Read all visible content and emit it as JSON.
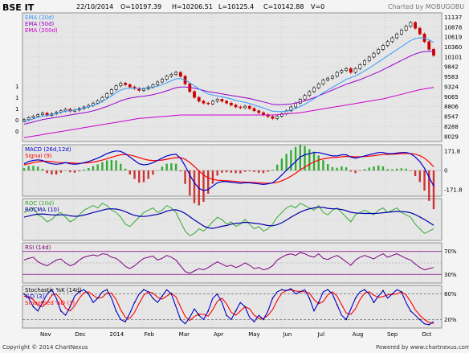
{
  "header": {
    "symbol": "BSE IT",
    "date": "22/10/2014",
    "open": "O=10197.39",
    "high": "H=10206.51",
    "low": "L=10125.4",
    "close": "C=10142.88",
    "volume": "V=0",
    "credit": "Charted by MOBUGOBU"
  },
  "footer": {
    "copyright": "Copyright © 2014 ChartNexus",
    "powered": "Powered by www.chartnexus.com"
  },
  "colors": {
    "background": "#e6e6e6",
    "grid": "#c0c0c0",
    "candle_up": "#000000",
    "candle_down": "#cc0000",
    "ema20": "#3399ff",
    "ema50": "#9900cc",
    "ema200": "#cc00cc",
    "macd": "#0000cc",
    "signal": "#ff0000",
    "hist_up": "#33aa33",
    "hist_down": "#cc3333",
    "roc": "#33aa33",
    "rocma": "#0000aa",
    "rsi": "#800080",
    "stoch_k": "#0000cc",
    "stoch_d": "#ff0000"
  },
  "chart_data": [
    {
      "type": "candlestick",
      "title": "BSE IT",
      "legend": [
        "EMA (20d)",
        "EMA (50d)",
        "EMA (200d)"
      ],
      "legend_placement": "top-left",
      "y_ticks": [
        "11137",
        "10878",
        "10619",
        "10360",
        "10101",
        "9842",
        "9583",
        "9324",
        "9065",
        "8806",
        "8547",
        "8288",
        "8029"
      ],
      "left_ticks": [
        "1",
        "1",
        "1",
        "0",
        "0"
      ],
      "ylim": [
        7900,
        11250
      ],
      "x_labels": [
        "Nov",
        "Dec",
        "2014",
        "Feb",
        "Mar",
        "Apr",
        "May",
        "Jun",
        "Jul",
        "Aug",
        "Sep",
        "Oct"
      ],
      "closes": [
        8470,
        8520,
        8560,
        8600,
        8640,
        8580,
        8620,
        8660,
        8700,
        8740,
        8690,
        8720,
        8760,
        8800,
        8840,
        8900,
        8960,
        9050,
        9150,
        9250,
        9350,
        9420,
        9380,
        9320,
        9280,
        9230,
        9270,
        9320,
        9380,
        9450,
        9520,
        9600,
        9650,
        9700,
        9600,
        9400,
        9200,
        9050,
        8950,
        8900,
        8880,
        8950,
        9000,
        8950,
        8900,
        8850,
        8800,
        8780,
        8820,
        8760,
        8700,
        8650,
        8600,
        8550,
        8500,
        8560,
        8620,
        8700,
        8800,
        8900,
        9000,
        9100,
        9200,
        9300,
        9400,
        9500,
        9550,
        9600,
        9700,
        9750,
        9800,
        9700,
        9800,
        9900,
        10000,
        10100,
        10200,
        10300,
        10400,
        10500,
        10600,
        10700,
        10800,
        10900,
        11000,
        10850,
        10700,
        10500,
        10300,
        10142.88
      ],
      "ema20": [
        8400,
        8450,
        8490,
        8530,
        8560,
        8580,
        8600,
        8630,
        8660,
        8690,
        8700,
        8720,
        8740,
        8770,
        8800,
        8840,
        8880,
        8940,
        9010,
        9090,
        9170,
        9240,
        9280,
        9290,
        9290,
        9280,
        9280,
        9290,
        9310,
        9340,
        9380,
        9430,
        9480,
        9530,
        9540,
        9500,
        9430,
        9350,
        9270,
        9200,
        9140,
        9110,
        9090,
        9070,
        9040,
        9010,
        8970,
        8940,
        8920,
        8890,
        8850,
        8810,
        8770,
        8730,
        8690,
        8680,
        8680,
        8690,
        8720,
        8760,
        8810,
        8870,
        8940,
        9010,
        9090,
        9170,
        9240,
        9310,
        9380,
        9450,
        9520,
        9560,
        9610,
        9670,
        9740,
        9810,
        9890,
        9970,
        10050,
        10130,
        10210,
        10290,
        10370,
        10450,
        10530,
        10580,
        10600,
        10590,
        10550,
        10480
      ],
      "ema50": [
        8350,
        8380,
        8410,
        8440,
        8470,
        8490,
        8510,
        8530,
        8550,
        8570,
        8590,
        8610,
        8630,
        8650,
        8670,
        8700,
        8730,
        8770,
        8810,
        8860,
        8910,
        8960,
        9000,
        9030,
        9050,
        9070,
        9080,
        9100,
        9120,
        9150,
        9180,
        9220,
        9260,
        9300,
        9320,
        9320,
        9310,
        9290,
        9260,
        9230,
        9200,
        9180,
        9160,
        9140,
        9120,
        9100,
        9080,
        9060,
        9040,
        9020,
        8990,
        8960,
        8930,
        8900,
        8870,
        8860,
        8860,
        8870,
        8880,
        8900,
        8930,
        8960,
        9000,
        9040,
        9090,
        9140,
        9190,
        9240,
        9290,
        9340,
        9390,
        9430,
        9470,
        9510,
        9560,
        9610,
        9660,
        9710,
        9770,
        9830,
        9890,
        9950,
        10010,
        10070,
        10130,
        10180,
        10220,
        10240,
        10250,
        10240
      ],
      "ema200": [
        8000,
        8020,
        8040,
        8060,
        8080,
        8100,
        8120,
        8140,
        8160,
        8180,
        8200,
        8220,
        8240,
        8260,
        8280,
        8300,
        8320,
        8340,
        8360,
        8380,
        8400,
        8420,
        8440,
        8460,
        8480,
        8500,
        8510,
        8520,
        8530,
        8540,
        8550,
        8560,
        8570,
        8580,
        8590,
        8590,
        8590,
        8590,
        8590,
        8590,
        8590,
        8590,
        8590,
        8590,
        8590,
        8590,
        8590,
        8590,
        8590,
        8590,
        8590,
        8590,
        8590,
        8590,
        8590,
        8600,
        8610,
        8620,
        8630,
        8640,
        8650,
        8670,
        8690,
        8710,
        8730,
        8750,
        8770,
        8790,
        8810,
        8830,
        8850,
        8870,
        8890,
        8910,
        8930,
        8950,
        8970,
        8990,
        9010,
        9040,
        9070,
        9100,
        9130,
        9160,
        9190,
        9220,
        9250,
        9270,
        9290,
        9310
      ]
    },
    {
      "type": "line",
      "title": "MACD (26d,12d)",
      "legend": [
        "MACD (26d,12d)",
        "Signal (9)"
      ],
      "y_ticks": [
        "171.8",
        "0",
        "-171.8"
      ],
      "ylim": [
        -230,
        230
      ],
      "macd": [
        60,
        80,
        90,
        95,
        90,
        70,
        60,
        55,
        60,
        70,
        60,
        55,
        60,
        70,
        80,
        95,
        110,
        130,
        150,
        165,
        175,
        170,
        150,
        120,
        90,
        60,
        50,
        55,
        70,
        90,
        110,
        130,
        140,
        145,
        110,
        40,
        -40,
        -110,
        -160,
        -180,
        -170,
        -140,
        -110,
        -100,
        -100,
        -105,
        -110,
        -115,
        -110,
        -110,
        -115,
        -120,
        -125,
        -120,
        -110,
        -80,
        -40,
        0,
        40,
        80,
        120,
        140,
        150,
        160,
        160,
        150,
        140,
        130,
        130,
        140,
        140,
        120,
        110,
        120,
        130,
        140,
        150,
        160,
        160,
        150,
        150,
        155,
        160,
        160,
        150,
        120,
        80,
        20,
        -60,
        -140
      ],
      "signal": [
        50,
        60,
        70,
        78,
        83,
        82,
        78,
        73,
        70,
        70,
        68,
        65,
        64,
        66,
        69,
        75,
        83,
        93,
        105,
        118,
        130,
        140,
        142,
        138,
        128,
        115,
        102,
        93,
        89,
        89,
        93,
        100,
        108,
        115,
        114,
        100,
        72,
        36,
        -4,
        -40,
        -66,
        -80,
        -87,
        -90,
        -92,
        -95,
        -98,
        -102,
        -104,
        -106,
        -108,
        -110,
        -113,
        -114,
        -113,
        -106,
        -93,
        -74,
        -51,
        -25,
        4,
        31,
        55,
        76,
        93,
        104,
        111,
        115,
        118,
        122,
        126,
        125,
        122,
        122,
        124,
        127,
        132,
        138,
        142,
        144,
        145,
        147,
        150,
        152,
        151,
        145,
        132,
        110,
        76,
        33
      ]
    },
    {
      "type": "line",
      "title": "ROC (10d)",
      "legend": [
        "ROC (10d)",
        "ROCMA (10)"
      ],
      "y_ticks": [],
      "ylim": [
        -9,
        9
      ],
      "roc": [
        3,
        4,
        5,
        2,
        1,
        -1,
        0,
        2,
        3,
        1,
        -1,
        0,
        2,
        4,
        5,
        6,
        5,
        7,
        6,
        4,
        3,
        1,
        -2,
        -3,
        -1,
        1,
        3,
        4,
        5,
        3,
        4,
        6,
        5,
        3,
        -1,
        -5,
        -7,
        -6,
        -4,
        -5,
        -3,
        -1,
        1,
        0,
        -2,
        -1,
        -3,
        -2,
        0,
        -2,
        -4,
        -3,
        -5,
        -4,
        -2,
        1,
        3,
        5,
        6,
        5,
        7,
        6,
        5,
        4,
        6,
        3,
        2,
        4,
        5,
        3,
        1,
        -1,
        2,
        3,
        4,
        3,
        2,
        4,
        5,
        3,
        4,
        5,
        3,
        2,
        1,
        -2,
        -4,
        -6,
        -5,
        -4
      ],
      "rocma": [
        1,
        1.5,
        2,
        2.3,
        2.4,
        2.2,
        2,
        1.9,
        2,
        2,
        1.6,
        1.4,
        1.5,
        1.9,
        2.4,
        3,
        3.5,
        4,
        4.5,
        4.6,
        4.5,
        4.1,
        3.4,
        2.5,
        1.8,
        1.4,
        1.3,
        1.5,
        1.9,
        2.2,
        2.8,
        3.6,
        4.1,
        4.2,
        3.6,
        2.6,
        1.2,
        -0.2,
        -1.5,
        -2.8,
        -3.6,
        -3.8,
        -3.4,
        -2.9,
        -2.6,
        -2,
        -1.7,
        -1.5,
        -1.2,
        -1.3,
        -1.6,
        -1.8,
        -2.2,
        -2.6,
        -2.7,
        -2.2,
        -1.4,
        -0.3,
        1,
        2.1,
        3.2,
        4,
        4.6,
        5,
        5.3,
        5.2,
        4.8,
        4.6,
        4.6,
        4.3,
        3.8,
        3.1,
        2.8,
        2.7,
        2.6,
        2.6,
        2.6,
        2.7,
        2.9,
        3.1,
        3.3,
        3.5,
        3.4,
        3.3,
        2.9,
        2.1,
        1.1,
        0,
        -1.2,
        -2.5
      ]
    },
    {
      "type": "line",
      "title": "RSI (14d)",
      "y_ticks": [
        "70%",
        "30%"
      ],
      "ylim": [
        15,
        85
      ],
      "rsi": [
        55,
        58,
        60,
        52,
        48,
        45,
        50,
        55,
        57,
        50,
        45,
        48,
        55,
        60,
        62,
        64,
        62,
        66,
        65,
        60,
        58,
        52,
        44,
        40,
        45,
        52,
        58,
        60,
        62,
        55,
        58,
        63,
        60,
        55,
        45,
        35,
        32,
        36,
        40,
        38,
        42,
        47,
        52,
        48,
        44,
        46,
        42,
        45,
        50,
        46,
        40,
        42,
        38,
        40,
        45,
        55,
        60,
        64,
        66,
        63,
        68,
        66,
        62,
        60,
        66,
        58,
        56,
        60,
        63,
        58,
        52,
        46,
        55,
        60,
        63,
        60,
        57,
        62,
        66,
        60,
        63,
        66,
        62,
        58,
        55,
        48,
        42,
        38,
        40,
        42
      ]
    },
    {
      "type": "line",
      "title": "Stochastic %K (14d)",
      "legend": [
        "Stochastic %K (14d)",
        "%D (3)",
        "Smoothed %D (3)"
      ],
      "y_ticks": [
        "80%",
        "20%"
      ],
      "ylim": [
        0,
        100
      ],
      "k": [
        80,
        70,
        50,
        40,
        60,
        80,
        90,
        70,
        40,
        30,
        50,
        75,
        85,
        90,
        80,
        60,
        70,
        85,
        90,
        70,
        40,
        20,
        15,
        35,
        60,
        80,
        90,
        85,
        70,
        60,
        75,
        90,
        80,
        50,
        20,
        10,
        25,
        45,
        30,
        20,
        40,
        70,
        80,
        60,
        30,
        20,
        40,
        60,
        50,
        25,
        15,
        30,
        20,
        40,
        70,
        85,
        90,
        88,
        92,
        80,
        85,
        90,
        70,
        40,
        60,
        85,
        90,
        80,
        55,
        30,
        20,
        45,
        70,
        85,
        90,
        80,
        60,
        75,
        88,
        70,
        80,
        90,
        85,
        60,
        40,
        30,
        20,
        10,
        8,
        15
      ],
      "d": [
        75,
        72,
        67,
        53,
        50,
        60,
        77,
        80,
        67,
        47,
        40,
        52,
        70,
        83,
        85,
        77,
        70,
        72,
        82,
        82,
        67,
        43,
        25,
        23,
        37,
        58,
        77,
        85,
        82,
        72,
        68,
        75,
        82,
        73,
        50,
        27,
        18,
        27,
        33,
        32,
        28,
        43,
        63,
        70,
        57,
        37,
        30,
        40,
        50,
        45,
        30,
        23,
        22,
        30,
        43,
        65,
        82,
        88,
        90,
        87,
        86,
        85,
        82,
        67,
        57,
        62,
        78,
        85,
        75,
        55,
        35,
        32,
        45,
        67,
        82,
        85,
        77,
        72,
        74,
        78,
        79,
        80,
        85,
        78,
        62,
        43,
        30,
        20,
        13,
        11
      ]
    }
  ]
}
